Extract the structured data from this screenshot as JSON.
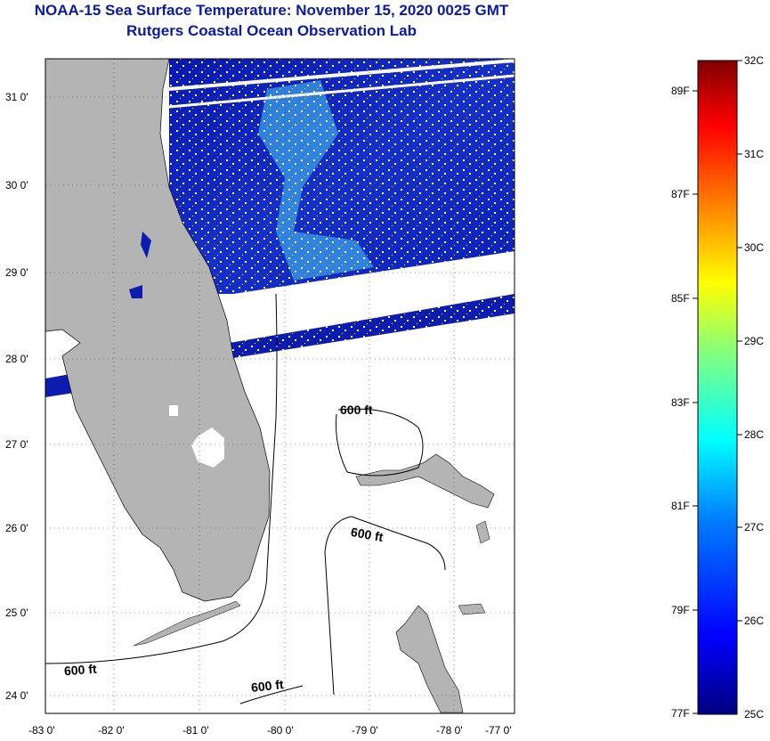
{
  "title": {
    "line1": "NOAA-15 Sea Surface Temperature:  November 15, 2020 0025 GMT",
    "line2": "Rutgers Coastal Ocean Observation Lab"
  },
  "map": {
    "lat_labels": [
      "31 0'",
      "30 0'",
      "29 0'",
      "28 0'",
      "27 0'",
      "26 0'",
      "25 0'",
      "24 0'"
    ],
    "lon_labels": [
      "-83 0'",
      "-82 0'",
      "-81 0'",
      "-80 0'",
      "-79 0'",
      "-78 0'",
      "-77 0'"
    ],
    "contour_labels": [
      "600 ft",
      "600 ft",
      "600 ft",
      "600 ft"
    ],
    "colors": {
      "land": "#b4b4b4",
      "ocean_cool": "#0a1aa6",
      "ocean_warm": "#36a0e8",
      "coastline": "#000000"
    }
  },
  "colorbar": {
    "celsius": [
      "32C",
      "31C",
      "30C",
      "29C",
      "28C",
      "27C",
      "26C",
      "25C"
    ],
    "fahrenheit": [
      "89F",
      "87F",
      "85F",
      "83F",
      "81F",
      "79F",
      "77F"
    ],
    "gradient": [
      "#800000",
      "#ff0000",
      "#ff8000",
      "#ffff00",
      "#80ff80",
      "#00ffff",
      "#0080ff",
      "#0000ff",
      "#000080"
    ]
  }
}
